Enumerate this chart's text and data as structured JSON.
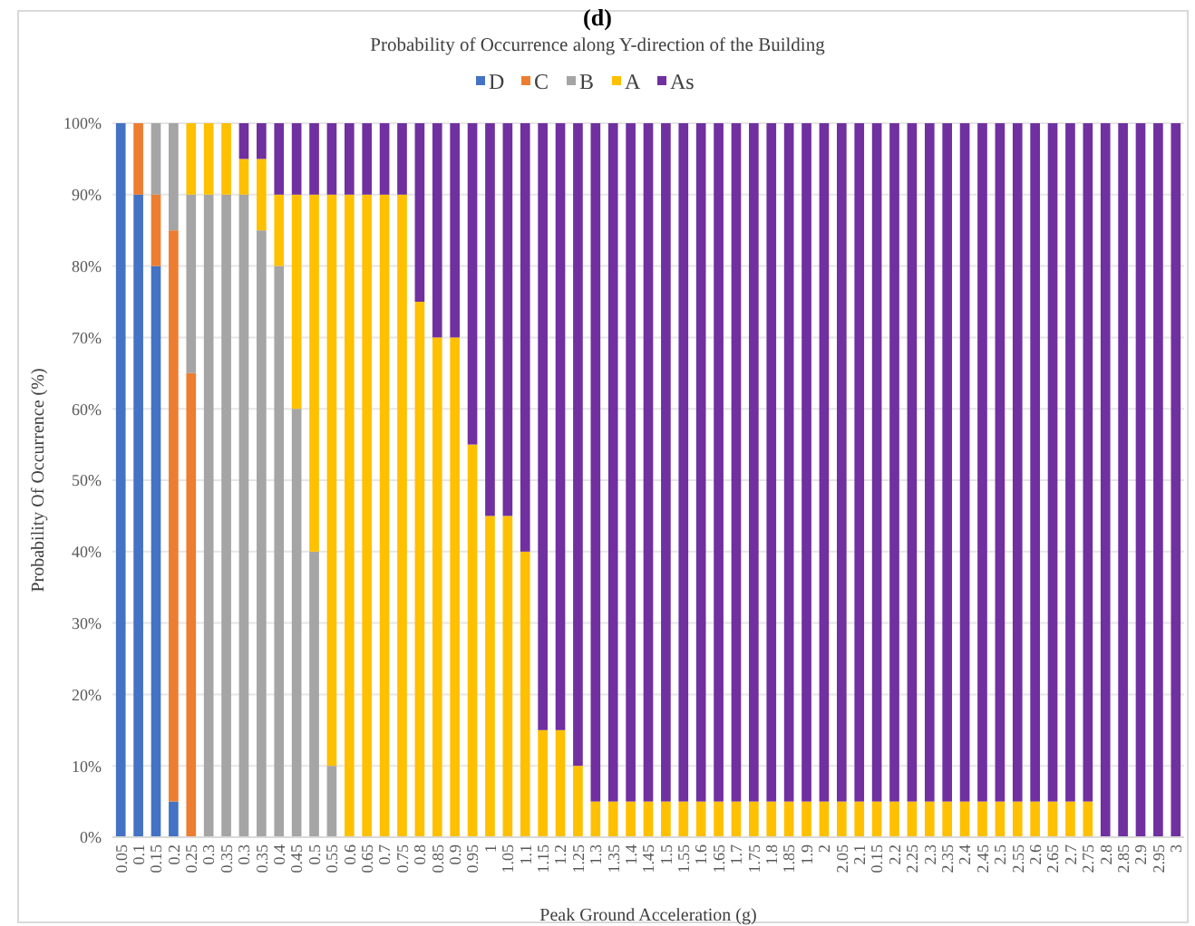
{
  "chart_data": {
    "type": "bar",
    "stacked": true,
    "title": "Probability of Occurrence along Y-direction of the Building",
    "xlabel": "Peak Ground Acceleration (g)",
    "ylabel": "Probability Of Occurrence (%)",
    "annotations": [
      "(d)"
    ],
    "categories": [
      "0.05",
      "0.1",
      "0.15",
      "0.2",
      "0.25",
      "0.3",
      "0.35",
      "0.3",
      "0.35",
      "0.4",
      "0.45",
      "0.5",
      "0.55",
      "0.6",
      "0.65",
      "0.7",
      "0.75",
      "0.8",
      "0.85",
      "0.9",
      "0.95",
      "1",
      "1.05",
      "1.1",
      "1.15",
      "1.2",
      "1.25",
      "1.3",
      "1.35",
      "1.4",
      "1.45",
      "1.5",
      "1.55",
      "1.6",
      "1.65",
      "1.7",
      "1.75",
      "1.8",
      "1.85",
      "1.9",
      "2",
      "2.05",
      "2.1",
      "0.15",
      "2.2",
      "2.25",
      "2.3",
      "2.35",
      "2.4",
      "2.45",
      "2.5",
      "2.55",
      "2.6",
      "2.65",
      "2.7",
      "2.75",
      "2.8",
      "2.85",
      "2.9",
      "2.95",
      "3"
    ],
    "series": [
      {
        "name": "D",
        "color": "#4472c4",
        "values": [
          100,
          90,
          80,
          5,
          0,
          0,
          0,
          0,
          0,
          0,
          0,
          0,
          0,
          0,
          0,
          0,
          0,
          0,
          0,
          0,
          0,
          0,
          0,
          0,
          0,
          0,
          0,
          0,
          0,
          0,
          0,
          0,
          0,
          0,
          0,
          0,
          0,
          0,
          0,
          0,
          0,
          0,
          0,
          0,
          0,
          0,
          0,
          0,
          0,
          0,
          0,
          0,
          0,
          0,
          0,
          0,
          0,
          0,
          0,
          0,
          0
        ]
      },
      {
        "name": "C",
        "color": "#ed7d31",
        "values": [
          0,
          10,
          10,
          80,
          65,
          0,
          0,
          0,
          0,
          0,
          0,
          0,
          0,
          0,
          0,
          0,
          0,
          0,
          0,
          0,
          0,
          0,
          0,
          0,
          0,
          0,
          0,
          0,
          0,
          0,
          0,
          0,
          0,
          0,
          0,
          0,
          0,
          0,
          0,
          0,
          0,
          0,
          0,
          0,
          0,
          0,
          0,
          0,
          0,
          0,
          0,
          0,
          0,
          0,
          0,
          0,
          0,
          0,
          0,
          0,
          0
        ]
      },
      {
        "name": "B",
        "color": "#a5a5a5",
        "values": [
          0,
          0,
          10,
          15,
          25,
          90,
          90,
          90,
          85,
          80,
          60,
          40,
          10,
          0,
          0,
          0,
          0,
          0,
          0,
          0,
          0,
          0,
          0,
          0,
          0,
          0,
          0,
          0,
          0,
          0,
          0,
          0,
          0,
          0,
          0,
          0,
          0,
          0,
          0,
          0,
          0,
          0,
          0,
          0,
          0,
          0,
          0,
          0,
          0,
          0,
          0,
          0,
          0,
          0,
          0,
          0,
          0,
          0,
          0,
          0,
          0
        ]
      },
      {
        "name": "A",
        "color": "#ffc000",
        "values": [
          0,
          0,
          0,
          0,
          10,
          10,
          10,
          5,
          10,
          10,
          30,
          50,
          80,
          90,
          90,
          90,
          90,
          75,
          70,
          70,
          55,
          45,
          45,
          40,
          15,
          15,
          10,
          5,
          5,
          5,
          5,
          5,
          5,
          5,
          5,
          5,
          5,
          5,
          5,
          5,
          5,
          5,
          5,
          5,
          5,
          5,
          5,
          5,
          5,
          5,
          5,
          5,
          5,
          5,
          5,
          5,
          0,
          0,
          0,
          0,
          0
        ]
      },
      {
        "name": "As",
        "color": "#7030a0",
        "values": [
          0,
          0,
          0,
          0,
          0,
          0,
          0,
          5,
          5,
          10,
          10,
          10,
          10,
          10,
          10,
          10,
          10,
          25,
          30,
          30,
          45,
          55,
          55,
          60,
          85,
          85,
          90,
          95,
          95,
          95,
          95,
          95,
          95,
          95,
          95,
          95,
          95,
          95,
          95,
          95,
          95,
          95,
          95,
          95,
          95,
          95,
          95,
          95,
          95,
          95,
          95,
          95,
          95,
          95,
          95,
          95,
          100,
          100,
          100,
          100,
          100
        ]
      }
    ],
    "ylim": [
      0,
      100
    ],
    "yticks": [
      {
        "value": 0,
        "label": "0%"
      },
      {
        "value": 10,
        "label": "10%"
      },
      {
        "value": 20,
        "label": "20%"
      },
      {
        "value": 30,
        "label": "30%"
      },
      {
        "value": 40,
        "label": "40%"
      },
      {
        "value": 50,
        "label": "50%"
      },
      {
        "value": 60,
        "label": "60%"
      },
      {
        "value": 70,
        "label": "70%"
      },
      {
        "value": 80,
        "label": "80%"
      },
      {
        "value": 90,
        "label": "90%"
      },
      {
        "value": 100,
        "label": "100%"
      }
    ],
    "grid": "y",
    "legend": "top"
  }
}
